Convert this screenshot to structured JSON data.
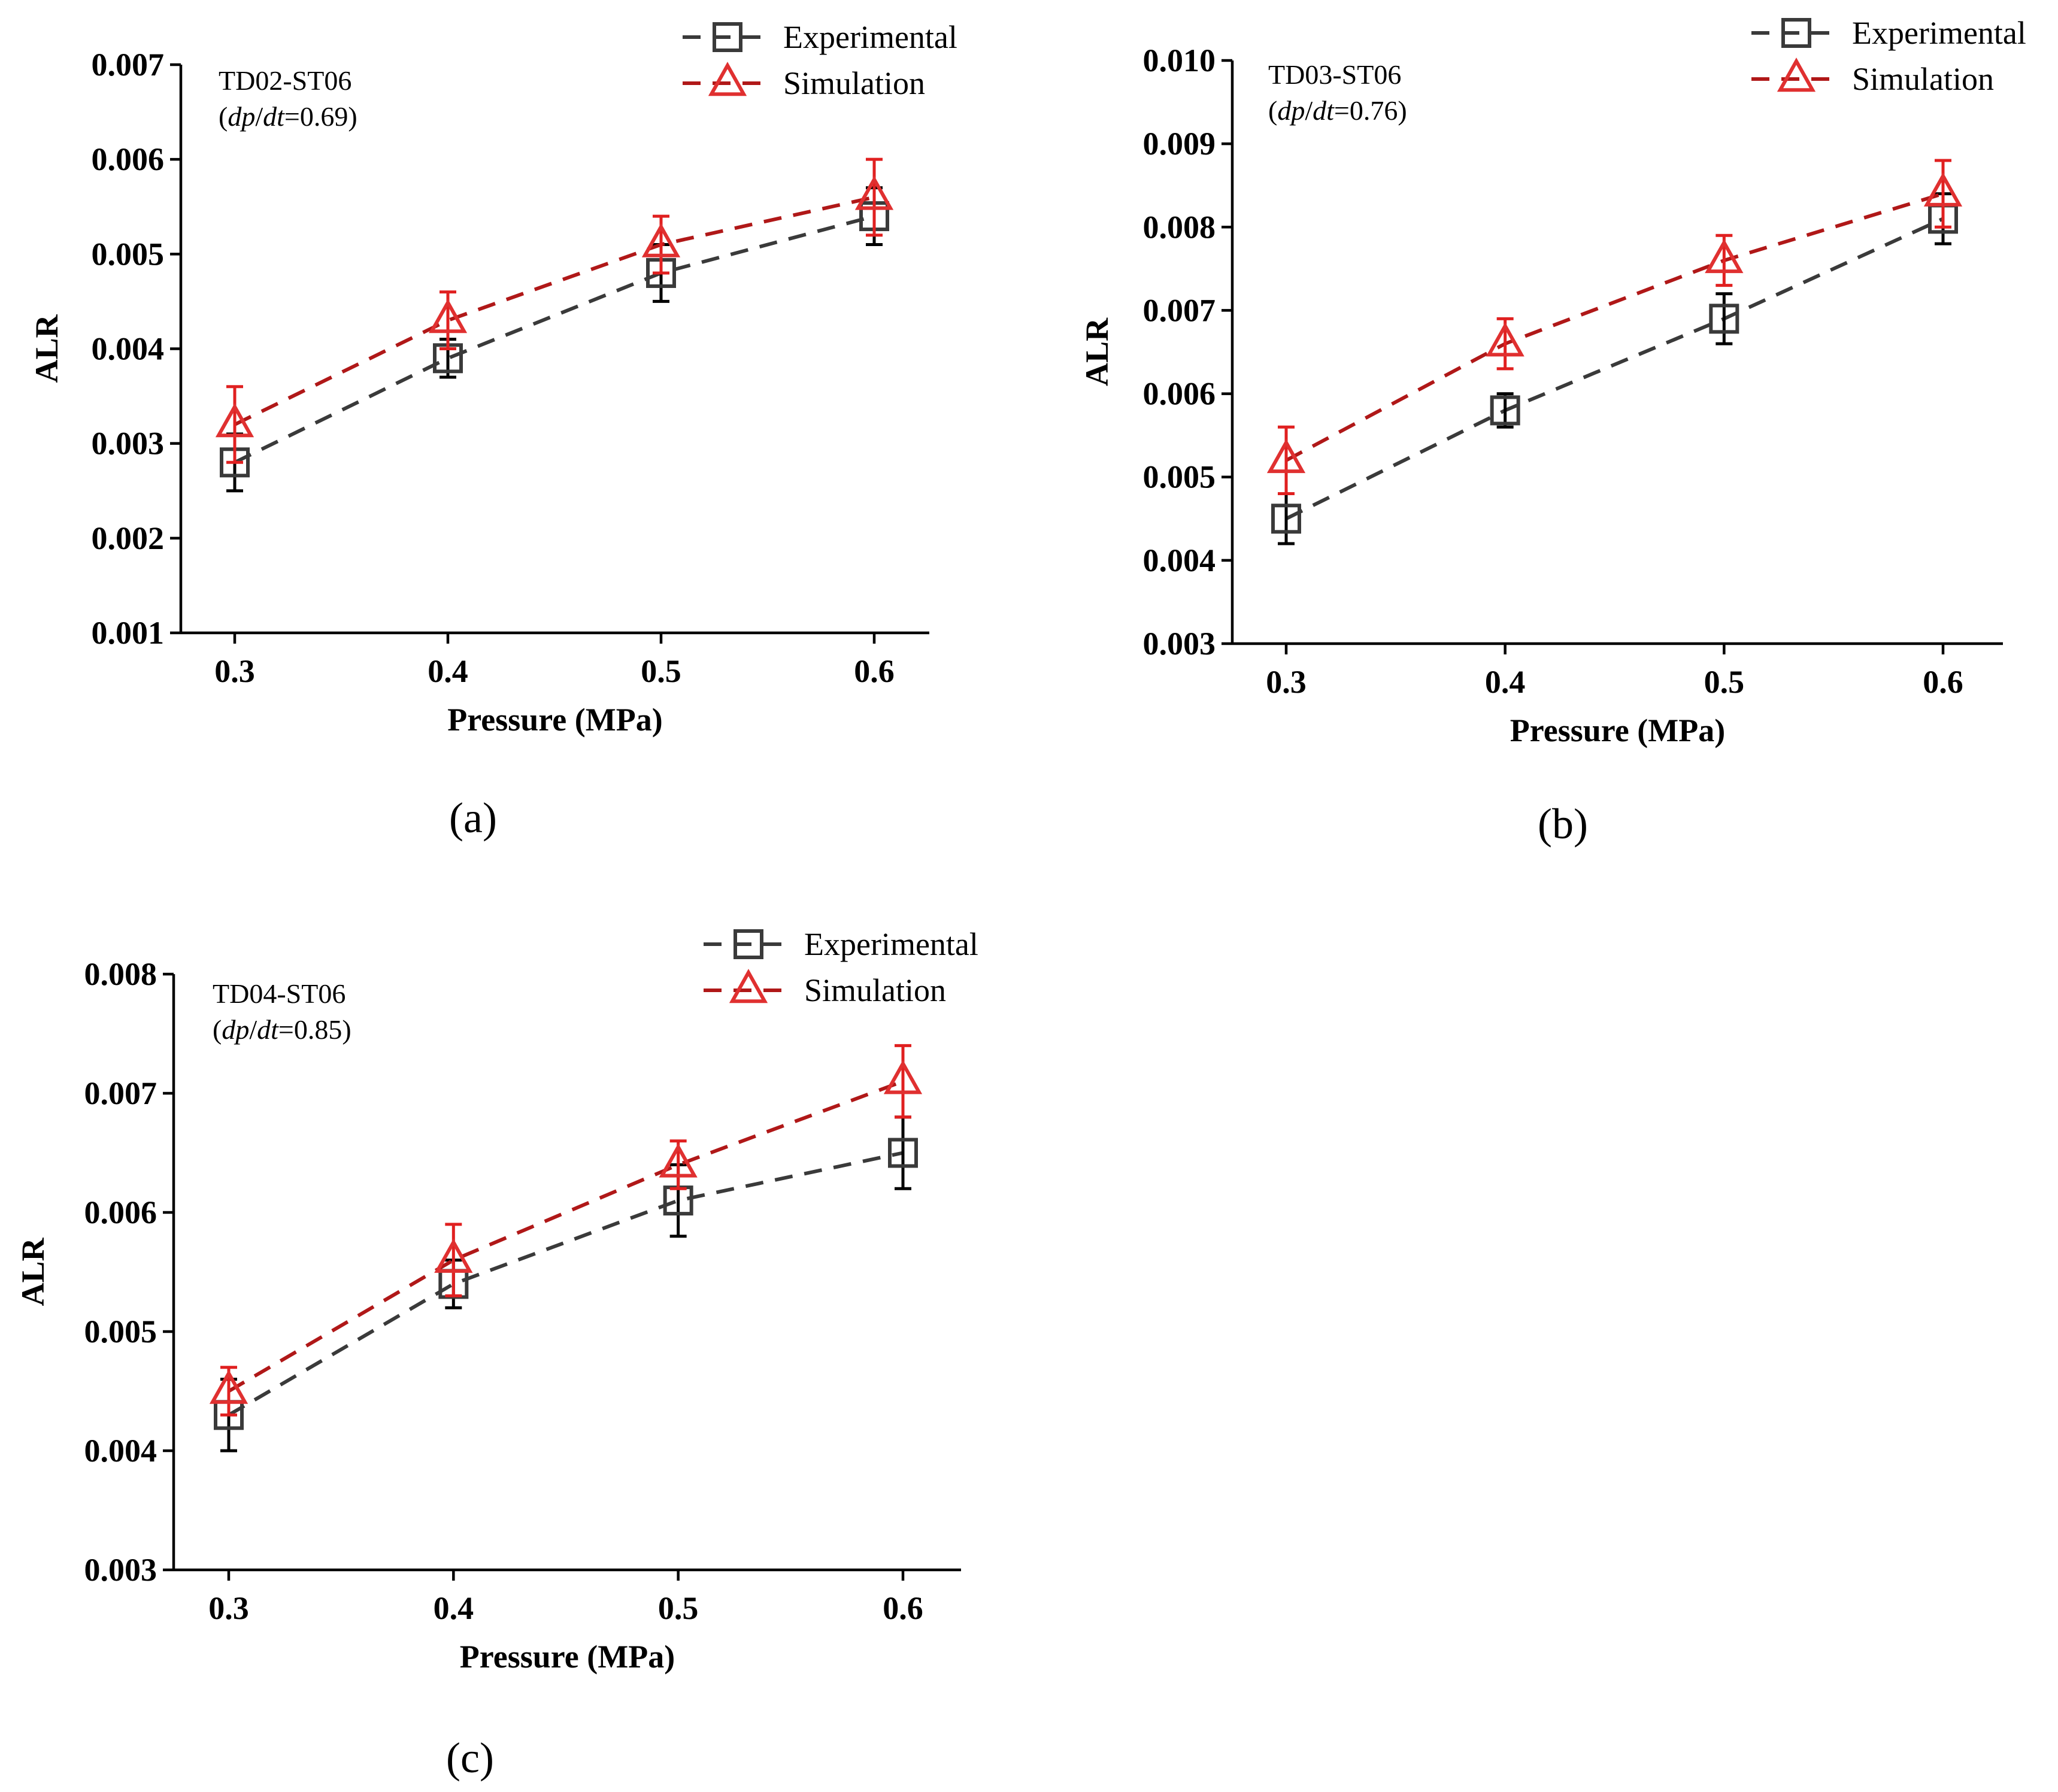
{
  "colors": {
    "experimental_line": "#3a3a3a",
    "experimental_marker": "#3a3a3a",
    "experimental_error": "#000000",
    "simulation_line": "#b01818",
    "simulation_marker": "#e03030",
    "simulation_error": "#e02020",
    "axis": "#000000"
  },
  "chart_data": [
    {
      "type": "line",
      "panel_label": "(a)",
      "annotation": {
        "name": "TD02-ST06",
        "rate_prefix": "(",
        "rate_var1": "dp",
        "rate_slash": "/",
        "rate_var2": "dt",
        "rate_value": "=0.69)"
      },
      "xlabel": "Pressure (MPa)",
      "ylabel": "ALR",
      "x": [
        0.3,
        0.4,
        0.5,
        0.6
      ],
      "x_tick_labels": [
        "0.3",
        "0.4",
        "0.5",
        "0.6"
      ],
      "ylim": [
        0.001,
        0.007
      ],
      "y_ticks": [
        0.001,
        0.002,
        0.003,
        0.004,
        0.005,
        0.006,
        0.007
      ],
      "y_tick_labels": [
        "0.001",
        "0.002",
        "0.003",
        "0.004",
        "0.005",
        "0.006",
        "0.007"
      ],
      "legend": "top-right",
      "series": [
        {
          "name": "Experimental",
          "marker": "square",
          "values": [
            0.0028,
            0.0039,
            0.0048,
            0.0054
          ],
          "error": [
            0.0003,
            0.0002,
            0.0003,
            0.0003
          ]
        },
        {
          "name": "Simulation",
          "marker": "triangle",
          "values": [
            0.0032,
            0.0043,
            0.0051,
            0.0056
          ],
          "error": [
            0.0004,
            0.0003,
            0.0003,
            0.0004
          ]
        }
      ]
    },
    {
      "type": "line",
      "panel_label": "(b)",
      "annotation": {
        "name": "TD03-ST06",
        "rate_prefix": "(",
        "rate_var1": "dp",
        "rate_slash": "/",
        "rate_var2": "dt",
        "rate_value": "=0.76)"
      },
      "xlabel": "Pressure (MPa)",
      "ylabel": "ALR",
      "x": [
        0.3,
        0.4,
        0.5,
        0.6
      ],
      "x_tick_labels": [
        "0.3",
        "0.4",
        "0.5",
        "0.6"
      ],
      "ylim": [
        0.003,
        0.01
      ],
      "y_ticks": [
        0.003,
        0.004,
        0.005,
        0.006,
        0.007,
        0.008,
        0.009,
        0.01
      ],
      "y_tick_labels": [
        "0.003",
        "0.004",
        "0.005",
        "0.006",
        "0.007",
        "0.008",
        "0.009",
        "0.010"
      ],
      "legend": "top-right",
      "series": [
        {
          "name": "Experimental",
          "marker": "square",
          "values": [
            0.0045,
            0.0058,
            0.0069,
            0.0081
          ],
          "error": [
            0.0003,
            0.0002,
            0.0003,
            0.0003
          ]
        },
        {
          "name": "Simulation",
          "marker": "triangle",
          "values": [
            0.0052,
            0.0066,
            0.0076,
            0.0084
          ],
          "error": [
            0.0004,
            0.0003,
            0.0003,
            0.0004
          ]
        }
      ]
    },
    {
      "type": "line",
      "panel_label": "(c)",
      "annotation": {
        "name": "TD04-ST06",
        "rate_prefix": "(",
        "rate_var1": "dp",
        "rate_slash": "/",
        "rate_var2": "dt",
        "rate_value": "=0.85)"
      },
      "xlabel": "Pressure (MPa)",
      "ylabel": "ALR",
      "x": [
        0.3,
        0.4,
        0.5,
        0.6
      ],
      "x_tick_labels": [
        "0.3",
        "0.4",
        "0.5",
        "0.6"
      ],
      "ylim": [
        0.003,
        0.008
      ],
      "y_ticks": [
        0.003,
        0.004,
        0.005,
        0.006,
        0.007,
        0.008
      ],
      "y_tick_labels": [
        "0.003",
        "0.004",
        "0.005",
        "0.006",
        "0.007",
        "0.008"
      ],
      "legend": "top-right",
      "series": [
        {
          "name": "Experimental",
          "marker": "square",
          "values": [
            0.0043,
            0.0054,
            0.0061,
            0.0065
          ],
          "error": [
            0.0003,
            0.0002,
            0.0003,
            0.0003
          ]
        },
        {
          "name": "Simulation",
          "marker": "triangle",
          "values": [
            0.0045,
            0.0056,
            0.0064,
            0.0071
          ],
          "error": [
            0.0002,
            0.0003,
            0.0002,
            0.0003
          ]
        }
      ]
    }
  ]
}
